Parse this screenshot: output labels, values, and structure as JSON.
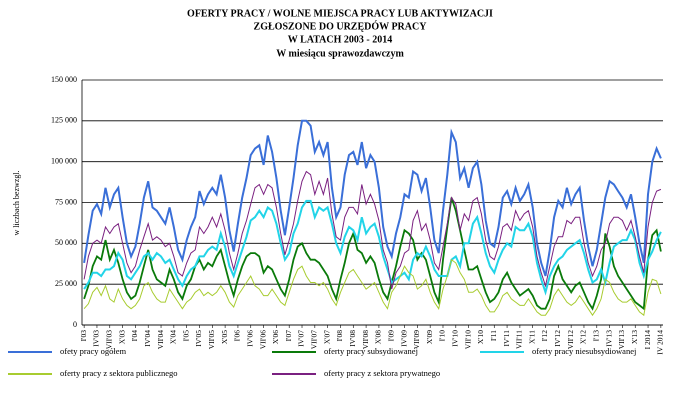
{
  "chart_data": {
    "type": "line",
    "title": [
      "OFERTY PRACY / WOLNE MIEJSCA PRACY LUB AKTYWIZACJI",
      "ZGŁOSZONE DO URZĘDÓW PRACY",
      "W LATACH 2003 - 2014"
    ],
    "subtitle": "W miesiącu sprawozdawczym",
    "y_label": "w liczbach bezwzgl.",
    "categories": [
      "I'03",
      null,
      null,
      "IV'03",
      null,
      null,
      "VII'03",
      null,
      null,
      "X'03",
      null,
      null,
      "I'04",
      null,
      null,
      "IV'04",
      null,
      null,
      "VII'04",
      null,
      null,
      "X'04",
      null,
      null,
      "I'05",
      null,
      null,
      "IV'05",
      null,
      null,
      "VII'05",
      null,
      null,
      "X'05",
      null,
      null,
      "I'06",
      null,
      null,
      "IV'06",
      null,
      null,
      "VII'06",
      null,
      null,
      "X'06",
      null,
      null,
      "I'07",
      null,
      null,
      "IV'07",
      null,
      null,
      "VII'07",
      null,
      null,
      "X'07",
      null,
      null,
      "I'08",
      null,
      null,
      "IV'08",
      null,
      null,
      "VII'08",
      null,
      null,
      "X'08",
      null,
      null,
      "I'09",
      null,
      null,
      "IV'09",
      null,
      null,
      "VII'09",
      null,
      null,
      "X'09",
      null,
      null,
      "I'10",
      null,
      null,
      "IV'10",
      null,
      null,
      "VII'10",
      null,
      null,
      "X'10",
      null,
      null,
      "I'11",
      null,
      null,
      "IV'11",
      null,
      null,
      "VII'11",
      null,
      null,
      "X'11",
      null,
      null,
      "I'12",
      null,
      null,
      "IV'12",
      null,
      null,
      "VII'12",
      null,
      null,
      "X'12",
      null,
      null,
      "I'13",
      null,
      null,
      "IV'13",
      null,
      null,
      "VII'13",
      null,
      null,
      "X'13",
      null,
      null,
      "I 2014",
      null,
      null,
      "IV 2014"
    ],
    "ylim": [
      0,
      150000
    ],
    "yticks": [
      0,
      {
        "value": 25000,
        "label": "25 000"
      },
      {
        "value": 50000,
        "label": "50 000"
      },
      {
        "value": 75000,
        "label": "75 000"
      },
      {
        "value": 100000,
        "label": "100 000"
      },
      {
        "value": 125000,
        "label": "125 000"
      },
      {
        "value": 150000,
        "label": "150 000"
      }
    ],
    "grid": true,
    "legend": "bottom",
    "series": [
      {
        "name": "ofety pracy ogółem",
        "color": "#3a6fd8",
        "values": [
          38000,
          55000,
          70000,
          74000,
          68000,
          84000,
          72000,
          80000,
          84000,
          66000,
          50000,
          42000,
          48000,
          62000,
          78000,
          88000,
          72000,
          70000,
          66000,
          62000,
          72000,
          60000,
          46000,
          40000,
          52000,
          60000,
          66000,
          82000,
          74000,
          80000,
          84000,
          80000,
          92000,
          78000,
          58000,
          45000,
          62000,
          78000,
          90000,
          104000,
          108000,
          110000,
          98000,
          116000,
          106000,
          90000,
          70000,
          55000,
          72000,
          90000,
          110000,
          125000,
          125000,
          122000,
          106000,
          112000,
          104000,
          112000,
          84000,
          66000,
          72000,
          92000,
          104000,
          106000,
          98000,
          112000,
          96000,
          104000,
          100000,
          84000,
          60000,
          48000,
          42000,
          56000,
          66000,
          80000,
          78000,
          94000,
          92000,
          82000,
          90000,
          72000,
          52000,
          44000,
          70000,
          92000,
          118000,
          112000,
          90000,
          96000,
          84000,
          96000,
          100000,
          86000,
          64000,
          50000,
          48000,
          60000,
          78000,
          82000,
          74000,
          84000,
          76000,
          80000,
          86000,
          72000,
          50000,
          38000,
          30000,
          46000,
          66000,
          76000,
          72000,
          84000,
          74000,
          80000,
          84000,
          64000,
          48000,
          36000,
          46000,
          62000,
          78000,
          88000,
          86000,
          82000,
          78000,
          72000,
          80000,
          66000,
          50000,
          38000,
          80000,
          100000,
          108000,
          102000
        ]
      },
      {
        "name": "oferty pracy subsydiowanej",
        "color": "#0a7a0a",
        "values": [
          16000,
          24000,
          36000,
          42000,
          40000,
          52000,
          40000,
          46000,
          38000,
          28000,
          20000,
          16000,
          18000,
          26000,
          36000,
          46000,
          34000,
          28000,
          26000,
          24000,
          34000,
          28000,
          20000,
          16000,
          24000,
          28000,
          36000,
          40000,
          34000,
          38000,
          36000,
          42000,
          46000,
          36000,
          26000,
          18000,
          28000,
          36000,
          42000,
          44000,
          44000,
          42000,
          32000,
          36000,
          34000,
          28000,
          22000,
          18000,
          28000,
          40000,
          48000,
          50000,
          44000,
          40000,
          40000,
          38000,
          34000,
          30000,
          22000,
          16000,
          28000,
          38000,
          50000,
          56000,
          46000,
          44000,
          38000,
          42000,
          38000,
          28000,
          20000,
          16000,
          26000,
          36000,
          48000,
          58000,
          56000,
          52000,
          40000,
          44000,
          40000,
          30000,
          20000,
          14000,
          40000,
          60000,
          78000,
          70000,
          58000,
          46000,
          34000,
          34000,
          36000,
          28000,
          20000,
          14000,
          16000,
          20000,
          28000,
          32000,
          26000,
          22000,
          18000,
          20000,
          22000,
          18000,
          12000,
          10000,
          10000,
          16000,
          30000,
          36000,
          28000,
          24000,
          20000,
          24000,
          26000,
          20000,
          14000,
          10000,
          18000,
          28000,
          56000,
          48000,
          36000,
          30000,
          26000,
          22000,
          18000,
          14000,
          12000,
          10000,
          40000,
          55000,
          58000,
          45000
        ]
      },
      {
        "name": "oferty pracy niesubsydiowanej",
        "color": "#22d4e8",
        "values": [
          22000,
          26000,
          32000,
          32000,
          30000,
          34000,
          34000,
          36000,
          44000,
          40000,
          30000,
          28000,
          32000,
          36000,
          42000,
          44000,
          40000,
          44000,
          42000,
          38000,
          40000,
          34000,
          28000,
          24000,
          30000,
          34000,
          36000,
          42000,
          42000,
          46000,
          48000,
          46000,
          56000,
          48000,
          36000,
          30000,
          38000,
          46000,
          54000,
          64000,
          66000,
          70000,
          66000,
          72000,
          70000,
          62000,
          50000,
          40000,
          44000,
          56000,
          62000,
          72000,
          76000,
          76000,
          66000,
          72000,
          70000,
          72000,
          62000,
          50000,
          44000,
          54000,
          60000,
          58000,
          52000,
          66000,
          56000,
          60000,
          62000,
          54000,
          42000,
          34000,
          26000,
          28000,
          30000,
          32000,
          28000,
          40000,
          44000,
          42000,
          48000,
          42000,
          34000,
          30000,
          30000,
          30000,
          40000,
          42000,
          36000,
          50000,
          50000,
          62000,
          66000,
          56000,
          44000,
          36000,
          32000,
          40000,
          46000,
          50000,
          48000,
          60000,
          58000,
          58000,
          62000,
          54000,
          38000,
          28000,
          20000,
          30000,
          36000,
          40000,
          42000,
          46000,
          48000,
          50000,
          52000,
          44000,
          34000,
          26000,
          28000,
          34000,
          26000,
          38000,
          48000,
          50000,
          52000,
          52000,
          58000,
          52000,
          38000,
          30000,
          40000,
          45000,
          52000,
          57000
        ]
      },
      {
        "name": "oferty pracy z sektora publicznego",
        "color": "#a8cc30",
        "values": [
          10000,
          13000,
          20000,
          23000,
          18000,
          24000,
          16000,
          14000,
          22000,
          16000,
          12000,
          10000,
          12000,
          16000,
          24000,
          26000,
          20000,
          16000,
          14000,
          14000,
          22000,
          18000,
          14000,
          10000,
          14000,
          16000,
          20000,
          22000,
          18000,
          20000,
          18000,
          20000,
          24000,
          20000,
          14000,
          11000,
          18000,
          22000,
          26000,
          30000,
          24000,
          22000,
          18000,
          18000,
          22000,
          18000,
          14000,
          12000,
          20000,
          28000,
          34000,
          36000,
          30000,
          26000,
          26000,
          24000,
          26000,
          22000,
          16000,
          12000,
          20000,
          26000,
          32000,
          34000,
          30000,
          26000,
          22000,
          24000,
          26000,
          20000,
          14000,
          10000,
          20000,
          24000,
          30000,
          36000,
          32000,
          30000,
          22000,
          24000,
          28000,
          20000,
          14000,
          10000,
          22000,
          30000,
          40000,
          38000,
          32000,
          28000,
          20000,
          20000,
          22000,
          18000,
          12000,
          8000,
          8000,
          12000,
          18000,
          20000,
          16000,
          14000,
          12000,
          12000,
          16000,
          12000,
          8000,
          6000,
          6000,
          10000,
          18000,
          22000,
          18000,
          14000,
          12000,
          14000,
          18000,
          14000,
          10000,
          6000,
          10000,
          16000,
          28000,
          26000,
          20000,
          16000,
          14000,
          14000,
          16000,
          12000,
          8000,
          6000,
          20000,
          28000,
          27000,
          19000
        ]
      },
      {
        "name": "oferty pracy z sektora prywatnego",
        "color": "#7a2080",
        "values": [
          28000,
          42000,
          50000,
          52000,
          50000,
          60000,
          56000,
          60000,
          62000,
          50000,
          38000,
          32000,
          36000,
          46000,
          54000,
          62000,
          52000,
          54000,
          52000,
          48000,
          50000,
          42000,
          32000,
          30000,
          38000,
          44000,
          46000,
          60000,
          56000,
          60000,
          66000,
          60000,
          68000,
          58000,
          44000,
          34000,
          44000,
          56000,
          64000,
          74000,
          84000,
          86000,
          80000,
          86000,
          84000,
          72000,
          56000,
          43000,
          52000,
          62000,
          76000,
          88000,
          94000,
          92000,
          80000,
          88000,
          80000,
          90000,
          68000,
          54000,
          52000,
          66000,
          72000,
          72000,
          68000,
          86000,
          74000,
          80000,
          74000,
          64000,
          46000,
          38000,
          22000,
          32000,
          36000,
          44000,
          46000,
          64000,
          70000,
          58000,
          62000,
          52000,
          38000,
          34000,
          48000,
          62000,
          78000,
          74000,
          58000,
          68000,
          64000,
          76000,
          78000,
          68000,
          52000,
          42000,
          40000,
          48000,
          60000,
          62000,
          58000,
          70000,
          64000,
          68000,
          70000,
          60000,
          42000,
          32000,
          24000,
          36000,
          48000,
          54000,
          54000,
          64000,
          62000,
          66000,
          66000,
          50000,
          38000,
          30000,
          36000,
          46000,
          50000,
          62000,
          66000,
          66000,
          64000,
          58000,
          64000,
          54000,
          42000,
          32000,
          60000,
          75000,
          82000,
          83000
        ]
      }
    ]
  }
}
